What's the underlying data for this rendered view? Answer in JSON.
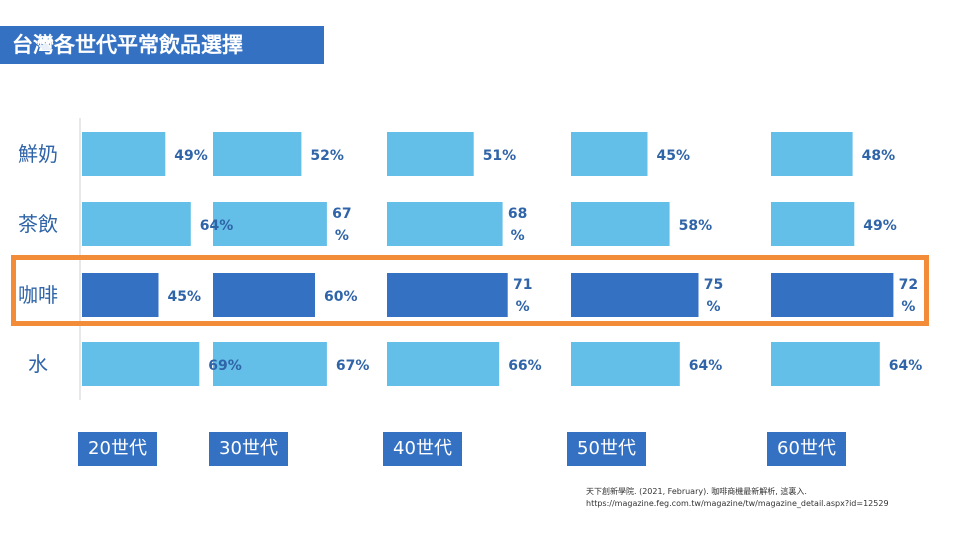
{
  "title": "台灣各世代平常飲品選擇",
  "colors": {
    "bar_default": "#63bfe8",
    "bar_highlight": "#3471c3",
    "label": "#2f64a8",
    "highlight_border": "#f28c38"
  },
  "chart_data": {
    "type": "bar",
    "orientation": "horizontal",
    "layout": "small-multiples",
    "categories": [
      "鮮奶",
      "茶飲",
      "咖啡",
      "水"
    ],
    "highlight_category": "咖啡",
    "series": [
      {
        "name": "20世代",
        "values": [
          49,
          64,
          45,
          69
        ],
        "labels": [
          "49%",
          "64%",
          "45%",
          "69%"
        ]
      },
      {
        "name": "30世代",
        "values": [
          52,
          67,
          60,
          67
        ],
        "labels": [
          "52%",
          "67\n%",
          "60%",
          "67%"
        ]
      },
      {
        "name": "40世代",
        "values": [
          51,
          68,
          71,
          66
        ],
        "labels": [
          "51%",
          "68\n%",
          "71\n%",
          "66%"
        ]
      },
      {
        "name": "50世代",
        "values": [
          45,
          58,
          75,
          64
        ],
        "labels": [
          "45%",
          "58%",
          "75\n%",
          "64%"
        ]
      },
      {
        "name": "60世代",
        "values": [
          48,
          49,
          72,
          64
        ],
        "labels": [
          "48%",
          "49%",
          "72\n%",
          "64%"
        ]
      }
    ],
    "unit": "%"
  },
  "citation": {
    "line1": "天下創新學院. (2021, February). 咖啡商機最新解析, 這裏入.",
    "line2": "https://magazine.feg.com.tw/magazine/tw/magazine_detail.aspx?id=12529"
  }
}
